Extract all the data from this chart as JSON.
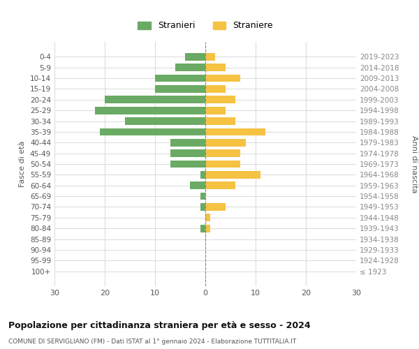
{
  "age_groups": [
    "100+",
    "95-99",
    "90-94",
    "85-89",
    "80-84",
    "75-79",
    "70-74",
    "65-69",
    "60-64",
    "55-59",
    "50-54",
    "45-49",
    "40-44",
    "35-39",
    "30-34",
    "25-29",
    "20-24",
    "15-19",
    "10-14",
    "5-9",
    "0-4"
  ],
  "birth_years": [
    "≤ 1923",
    "1924-1928",
    "1929-1933",
    "1934-1938",
    "1939-1943",
    "1944-1948",
    "1949-1953",
    "1954-1958",
    "1959-1963",
    "1964-1968",
    "1969-1973",
    "1974-1978",
    "1979-1983",
    "1984-1988",
    "1989-1993",
    "1994-1998",
    "1999-2003",
    "2004-2008",
    "2009-2013",
    "2014-2018",
    "2019-2023"
  ],
  "males": [
    0,
    0,
    0,
    0,
    1,
    0,
    1,
    1,
    3,
    1,
    7,
    7,
    7,
    21,
    16,
    22,
    20,
    10,
    10,
    6,
    4
  ],
  "females": [
    0,
    0,
    0,
    0,
    1,
    1,
    4,
    0,
    6,
    11,
    7,
    7,
    8,
    12,
    6,
    4,
    6,
    4,
    7,
    4,
    2
  ],
  "male_color": "#6aaa64",
  "female_color": "#f5c242",
  "male_label": "Stranieri",
  "female_label": "Straniere",
  "title": "Popolazione per cittadinanza straniera per età e sesso - 2024",
  "subtitle": "COMUNE DI SERVIGLIANO (FM) - Dati ISTAT al 1° gennaio 2024 - Elaborazione TUTTITALIA.IT",
  "ylabel_left": "Fasce di età",
  "ylabel_right": "Anni di nascita",
  "xlim": 30,
  "background_color": "#ffffff",
  "grid_color": "#dddddd"
}
